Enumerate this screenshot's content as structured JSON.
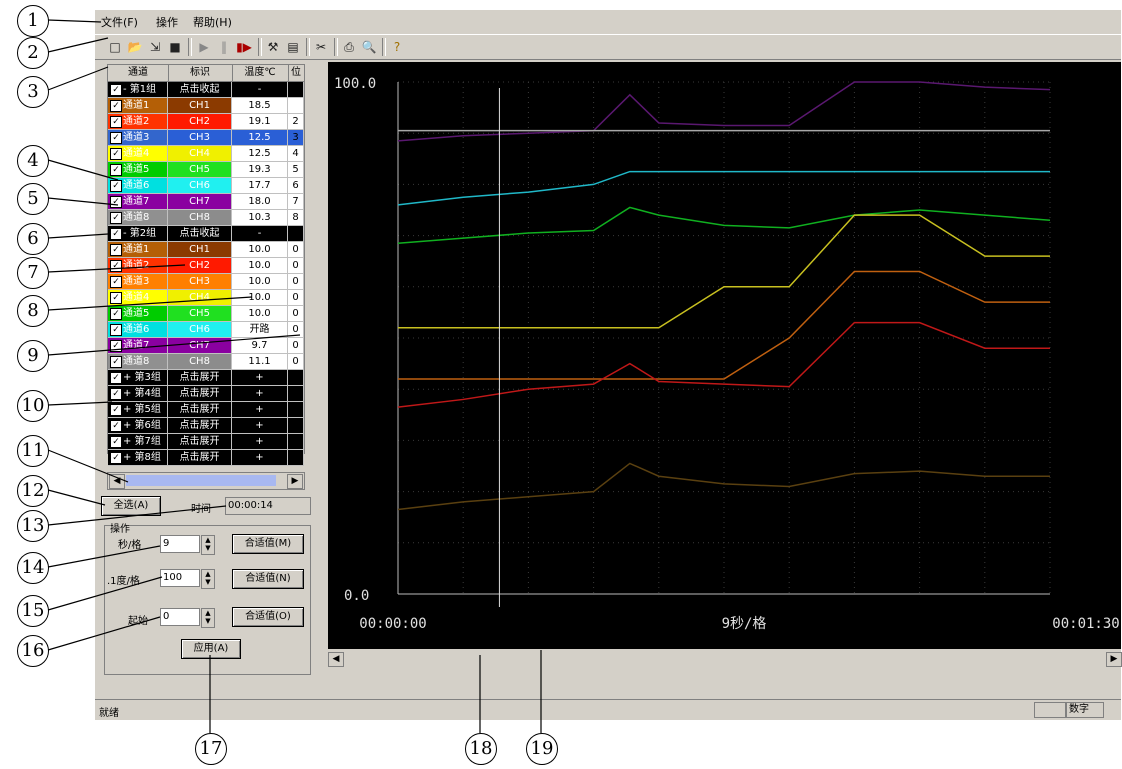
{
  "menu": {
    "file": "文件(F)",
    "operate": "操作",
    "help": "帮助(H)"
  },
  "table": {
    "headers": [
      "通道",
      "标识",
      "温度℃",
      "位"
    ],
    "rows": [
      {
        "kind": "group",
        "name": "- 第1组",
        "tag": "点击收起",
        "value": "-",
        "extra": "",
        "tag_color": "#000000"
      },
      {
        "kind": "ch",
        "name": "通道1",
        "tag": "CH1",
        "value": "18.5",
        "extra": "",
        "color": "#8b3a00",
        "name_color": "#b45f06"
      },
      {
        "kind": "ch",
        "name": "通道2",
        "tag": "CH2",
        "value": "19.1",
        "extra": "2",
        "color": "#ff1a00",
        "name_color": "#ff3300"
      },
      {
        "kind": "ch",
        "name": "通道3",
        "tag": "CH3",
        "value": "12.5",
        "extra": "3",
        "color": "#2a5fd6",
        "name_color": "#3366cc",
        "selected": true
      },
      {
        "kind": "ch",
        "name": "通道4",
        "tag": "CH4",
        "value": "12.5",
        "extra": "4",
        "color": "#f0f000",
        "name_color": "#ffff00"
      },
      {
        "kind": "ch",
        "name": "通道5",
        "tag": "CH5",
        "value": "19.3",
        "extra": "5",
        "color": "#20e020",
        "name_color": "#00cc00"
      },
      {
        "kind": "ch",
        "name": "通道6",
        "tag": "CH6",
        "value": "17.7",
        "extra": "6",
        "color": "#20f0f0",
        "name_color": "#00e0e0"
      },
      {
        "kind": "ch",
        "name": "通道7",
        "tag": "CH7",
        "value": "18.0",
        "extra": "7",
        "color": "#8a00a0",
        "name_color": "#8a00a0"
      },
      {
        "kind": "ch",
        "name": "通道8",
        "tag": "CH8",
        "value": "10.3",
        "extra": "8",
        "color": "#8c8c8c",
        "name_color": "#909090"
      },
      {
        "kind": "group",
        "name": "- 第2组",
        "tag": "点击收起",
        "value": "-",
        "extra": ""
      },
      {
        "kind": "ch",
        "name": "通道1",
        "tag": "CH1",
        "value": "10.0",
        "extra": "0",
        "color": "#8b3a00",
        "name_color": "#b45f06"
      },
      {
        "kind": "ch",
        "name": "通道2",
        "tag": "CH2",
        "value": "10.0",
        "extra": "0",
        "color": "#ff1a00",
        "name_color": "#ff3300"
      },
      {
        "kind": "ch",
        "name": "通道3",
        "tag": "CH3",
        "value": "10.0",
        "extra": "0",
        "color": "#ff7f00",
        "name_color": "#ff8000"
      },
      {
        "kind": "ch",
        "name": "通道4",
        "tag": "CH4",
        "value": "10.0",
        "extra": "0",
        "color": "#f0f000",
        "name_color": "#ffff00"
      },
      {
        "kind": "ch",
        "name": "通道5",
        "tag": "CH5",
        "value": "10.0",
        "extra": "0",
        "color": "#20e020",
        "name_color": "#00cc00"
      },
      {
        "kind": "ch",
        "name": "通道6",
        "tag": "CH6",
        "value": "开路",
        "extra": "0",
        "color": "#20f0f0",
        "name_color": "#00e0e0"
      },
      {
        "kind": "ch",
        "name": "通道7",
        "tag": "CH7",
        "value": "9.7",
        "extra": "0",
        "color": "#8a00a0",
        "name_color": "#8a00a0"
      },
      {
        "kind": "ch",
        "name": "通道8",
        "tag": "CH8",
        "value": "11.1",
        "extra": "0",
        "color": "#8c8c8c",
        "name_color": "#909090"
      },
      {
        "kind": "group",
        "name": "+ 第3组",
        "tag": "点击展开",
        "value": "+",
        "extra": ""
      },
      {
        "kind": "group",
        "name": "+ 第4组",
        "tag": "点击展开",
        "value": "+",
        "extra": ""
      },
      {
        "kind": "group",
        "name": "+ 第5组",
        "tag": "点击展开",
        "value": "+",
        "extra": ""
      },
      {
        "kind": "group",
        "name": "+ 第6组",
        "tag": "点击展开",
        "value": "+",
        "extra": ""
      },
      {
        "kind": "group",
        "name": "+ 第7组",
        "tag": "点击展开",
        "value": "+",
        "extra": ""
      },
      {
        "kind": "group",
        "name": "+ 第8组",
        "tag": "点击展开",
        "value": "+",
        "extra": ""
      }
    ]
  },
  "controls": {
    "select_all": "全选(A)",
    "time_label": "时间",
    "time_value": "00:00:14",
    "ops_title": "操作",
    "sec_label": "秒/格",
    "sec_value": "9",
    "deg_label": ".1度/格",
    "deg_value": "100",
    "start_label": "起始",
    "start_value": "0",
    "fit_m": "合适值(M)",
    "fit_n": "合适值(N)",
    "fit_o": "合适值(O)",
    "apply": "应用(A)"
  },
  "chart_data": {
    "type": "line",
    "y_top_label": "100.0",
    "y_bottom_label": "0.0",
    "x_left_label": "00:00:00",
    "x_mid_label": "9秒/格",
    "x_right_label": "00:01:30",
    "ylim": [
      0,
      100
    ],
    "xlim": [
      0,
      90
    ],
    "grid": true,
    "cursor_x": 14,
    "x": [
      0,
      9,
      18,
      27,
      32,
      36,
      45,
      54,
      63,
      72,
      81,
      90
    ],
    "series": [
      {
        "color": "#5a1870",
        "values": [
          88.5,
          89.5,
          90,
          90.5,
          97.5,
          92,
          91.5,
          91.5,
          100,
          100,
          99,
          98.5
        ]
      },
      {
        "color": "#a8a8a8",
        "values": [
          90.5,
          90.5,
          90.5,
          90.5,
          90.5,
          90.5,
          90.5,
          90.5,
          90.5,
          90.5,
          90.5,
          90.5
        ]
      },
      {
        "color": "#20b8c8",
        "values": [
          76,
          77.5,
          78.5,
          80,
          82.5,
          82.5,
          82.5,
          82.5,
          82.5,
          82.5,
          82.5,
          82.5
        ]
      },
      {
        "color": "#10b020",
        "values": [
          68.5,
          69.5,
          70.5,
          71,
          75.5,
          74,
          72,
          71.5,
          74,
          75,
          74,
          73
        ]
      },
      {
        "color": "#c8c020",
        "values": [
          52,
          52,
          52,
          52,
          52,
          52,
          60,
          60,
          74,
          74,
          66,
          66
        ]
      },
      {
        "color": "#c06010",
        "values": [
          42,
          42,
          42,
          42,
          42,
          42,
          42,
          50,
          63,
          63,
          57,
          57
        ]
      },
      {
        "color": "#c01818",
        "values": [
          36.5,
          38,
          40,
          41,
          45,
          41.5,
          41,
          40.5,
          53,
          53,
          48,
          48
        ]
      },
      {
        "color": "#5a4010",
        "values": [
          16.5,
          18,
          19,
          20,
          25.5,
          23,
          21.5,
          21,
          23.5,
          24,
          23,
          23
        ]
      }
    ]
  },
  "status": {
    "ready": "就绪",
    "num": "数字"
  },
  "callouts": [
    "1",
    "2",
    "3",
    "4",
    "5",
    "6",
    "7",
    "8",
    "9",
    "10",
    "11",
    "12",
    "13",
    "14",
    "15",
    "16",
    "17",
    "18",
    "19"
  ]
}
